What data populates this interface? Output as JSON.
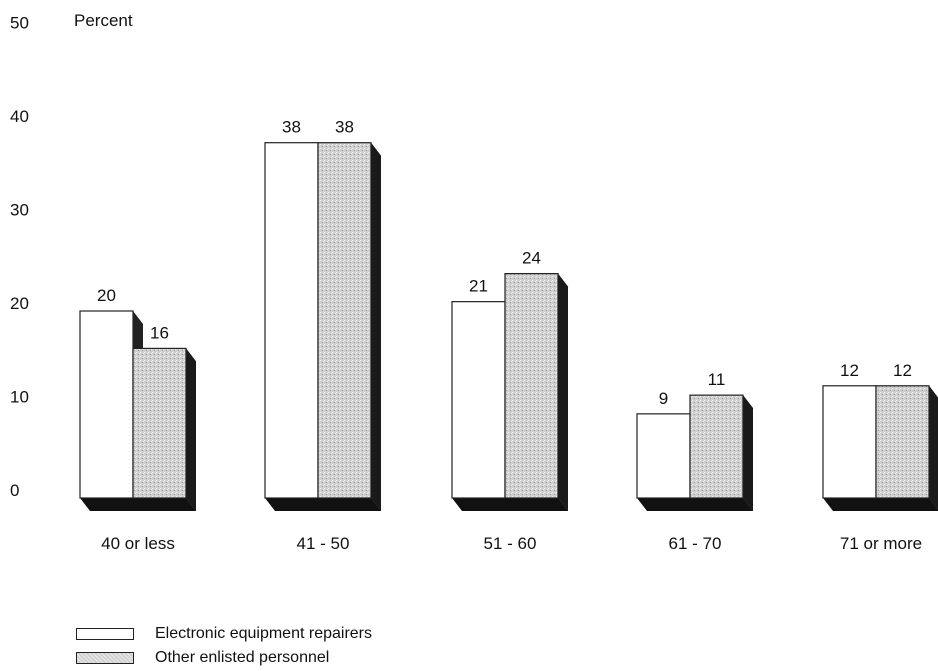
{
  "chart_data": {
    "type": "bar",
    "ylabel": "Percent",
    "ylim": [
      0,
      50
    ],
    "yticks": [
      "0",
      "10",
      "20",
      "30",
      "40",
      "50"
    ],
    "categories": [
      "40 or less",
      "41 - 50",
      "51 - 60",
      "61 - 70",
      "71 or more"
    ],
    "series": [
      {
        "name": "Electronic equipment repairers",
        "values": [
          20,
          38,
          21,
          9,
          12
        ],
        "color": "#ffffff"
      },
      {
        "name": "Other enlisted personnel",
        "values": [
          16,
          38,
          24,
          11,
          12
        ],
        "color": "#cfcfcf"
      }
    ],
    "grid": false,
    "legend_position": "bottom-left",
    "style": "3d-bars"
  }
}
